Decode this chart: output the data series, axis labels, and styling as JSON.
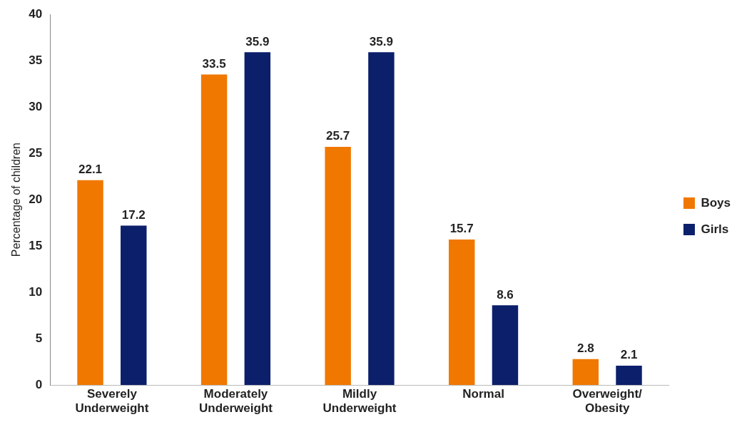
{
  "chart_data": {
    "type": "bar",
    "ylabel": "Percentage of children",
    "categories": [
      "Severely Underweight",
      "Moderately Underweight",
      "Mildly Underweight",
      "Normal",
      "Overweight/ Obesity"
    ],
    "series": [
      {
        "name": "Boys",
        "color": "#f07800",
        "values": [
          22.1,
          33.5,
          25.7,
          15.7,
          2.8
        ]
      },
      {
        "name": "Girls",
        "color": "#0b1f6b",
        "values": [
          17.2,
          35.9,
          35.9,
          8.6,
          2.1
        ]
      }
    ],
    "ylim": [
      0,
      40
    ],
    "yticks": [
      0,
      5,
      10,
      15,
      20,
      25,
      30,
      35,
      40
    ],
    "grid": false,
    "legend": "right",
    "data_labels": true
  }
}
